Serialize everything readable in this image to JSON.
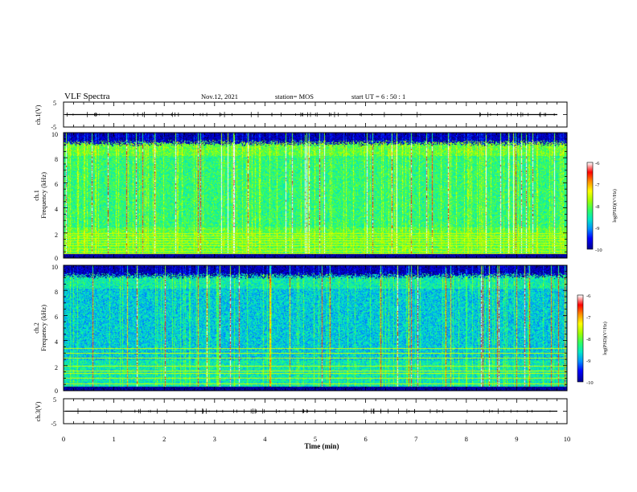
{
  "header": {
    "title": "VLF Spectra",
    "date": "Nov.12, 2021",
    "station": "station= MOS",
    "start": "start  UT  =   6  : 50 : 1"
  },
  "colors": {
    "colormap": [
      "#000000",
      "#0000a0",
      "#0000ff",
      "#0090ff",
      "#00e8c8",
      "#30ff60",
      "#a0ff00",
      "#ffff00",
      "#ff9000",
      "#ff0000",
      "#ffffff"
    ]
  },
  "colorbar": {
    "label": "log(PSD)(V²/Hz)",
    "ticks": [
      "-6",
      "-7",
      "-8",
      "-9",
      "-10"
    ]
  },
  "chart_data": [
    {
      "type": "line",
      "panel": "ch.1(V)",
      "ylabel": "ch.1(V)",
      "ylim": [
        -5,
        5
      ],
      "yticks": [
        "5",
        "-5"
      ],
      "baseline": 0,
      "description_values": "near-constant trace at ~0 V with small impulsive spikes"
    },
    {
      "type": "heatmap",
      "panel": "ch.1 spectrogram",
      "ylabel": [
        "ch.1",
        "Frequency (kHz)"
      ],
      "ylim": [
        0,
        10
      ],
      "yticks": [
        "0",
        "2",
        "4",
        "6",
        "8",
        "10"
      ],
      "xlim": [
        0,
        10
      ],
      "zlim": [
        -10,
        -6
      ],
      "zlabel": "log(PSD)(V²/Hz)",
      "cutoff_khz": 9.2,
      "tone_lines_khz": [
        0.2,
        0.4,
        0.6,
        0.8,
        1.0,
        1.2,
        1.4,
        1.6,
        1.8,
        2.0
      ]
    },
    {
      "type": "heatmap",
      "panel": "ch.2 spectrogram",
      "ylabel": [
        "ch.2",
        "Frequency (kHz)"
      ],
      "ylim": [
        0,
        10
      ],
      "yticks": [
        "0",
        "2",
        "4",
        "6",
        "8",
        "10"
      ],
      "xlim": [
        0,
        10
      ],
      "zlim": [
        -10,
        -6
      ],
      "zlabel": "log(PSD)(V²/Hz)",
      "cutoff_khz": 9.2,
      "tone_lines_khz": [
        0.6,
        1.0,
        1.4,
        1.6,
        2.0,
        2.6,
        3.0,
        3.4
      ]
    },
    {
      "type": "line",
      "panel": "ch.3(V)",
      "ylabel": "ch.3(V)",
      "ylim": [
        -5,
        5
      ],
      "yticks": [
        "5",
        "-5"
      ],
      "baseline": 0
    }
  ],
  "xaxis": {
    "label": "Time (min)",
    "ticks": [
      "0",
      "1",
      "2",
      "3",
      "4",
      "5",
      "6",
      "7",
      "8",
      "9",
      "10"
    ],
    "xlim": [
      0,
      10
    ]
  }
}
